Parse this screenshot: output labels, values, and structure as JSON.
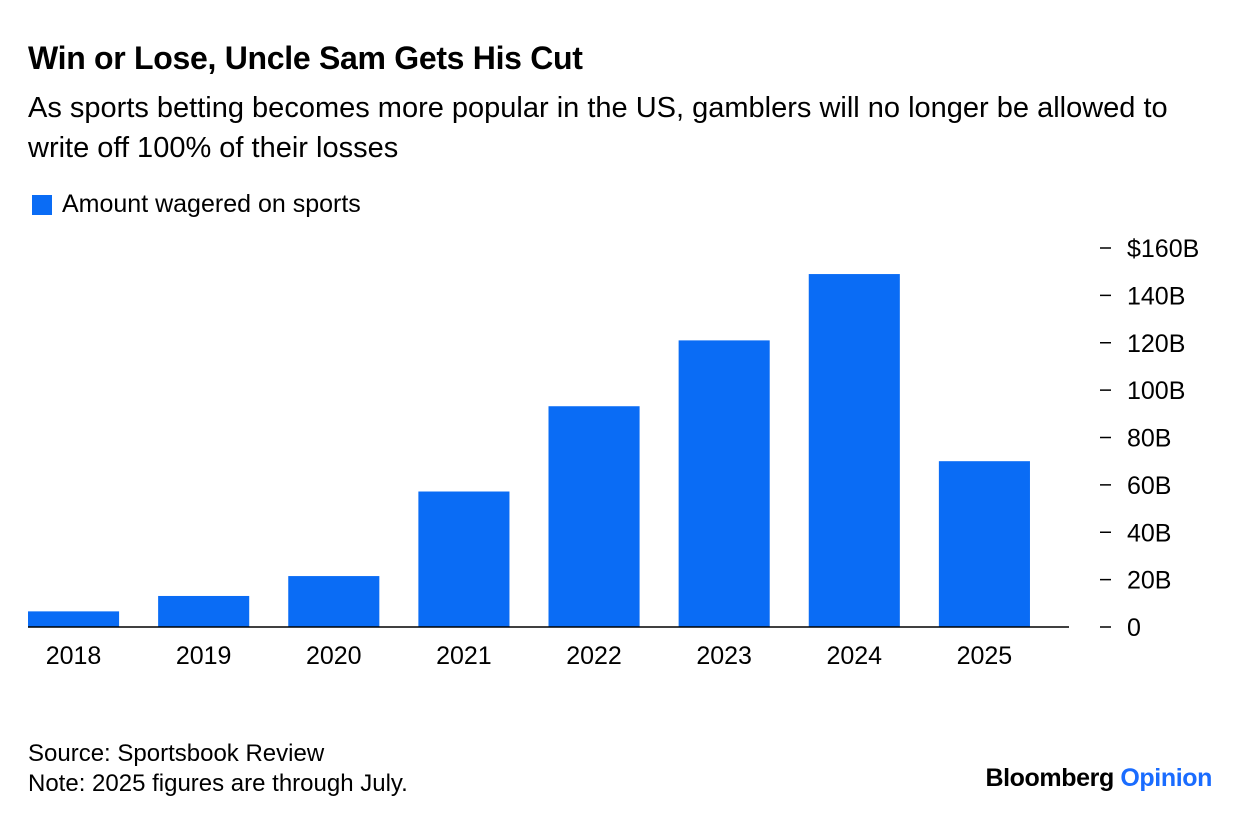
{
  "title": "Win or Lose, Uncle Sam Gets His Cut",
  "subtitle": "As sports betting becomes more popular in the US, gamblers will no longer be allowed to write off 100% of their losses",
  "source": "Source: Sportsbook Review",
  "note": "Note: 2025 figures are through July.",
  "brand": {
    "name": "Bloomberg",
    "section": "Opinion",
    "section_color": "#1a6cff"
  },
  "colors": {
    "bar": "#0a6cf5",
    "axis": "#000000"
  },
  "chart_data": {
    "type": "bar",
    "categories": [
      "2018",
      "2019",
      "2020",
      "2021",
      "2022",
      "2023",
      "2024",
      "2025"
    ],
    "series": [
      {
        "name": "Amount wagered on sports",
        "values": [
          6.6,
          13.1,
          21.5,
          57.2,
          93.2,
          121,
          149,
          70
        ]
      }
    ],
    "ylim": [
      0,
      160
    ],
    "yticks": [
      0,
      20,
      40,
      60,
      80,
      100,
      120,
      140,
      160
    ],
    "ytick_labels": [
      "0",
      "20B",
      "40B",
      "60B",
      "80B",
      "100B",
      "120B",
      "140B",
      "$160B"
    ],
    "y_axis_side": "right",
    "grid": false,
    "legend_position": "top-left",
    "xlabel": "",
    "ylabel": ""
  }
}
